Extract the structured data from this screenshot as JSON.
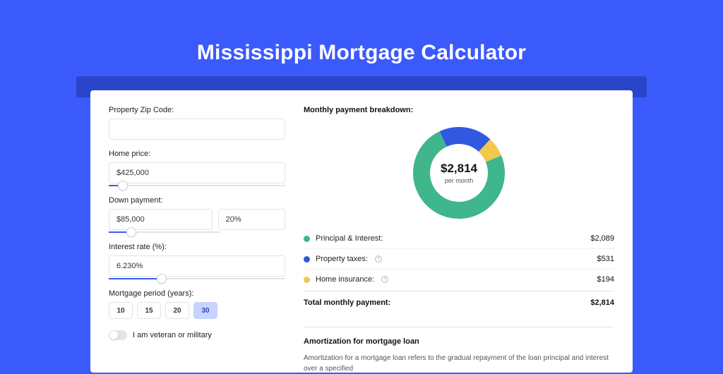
{
  "page": {
    "title": "Mississippi Mortgage Calculator",
    "background_color": "#3b5afc",
    "header_shade_color": "#2946c8",
    "card_background": "#ffffff"
  },
  "form": {
    "zip_label": "Property Zip Code:",
    "zip_value": "",
    "home_price_label": "Home price:",
    "home_price_value": "$425,000",
    "home_price_slider_pct": 8,
    "down_payment_label": "Down payment:",
    "down_payment_value": "$85,000",
    "down_payment_pct_value": "20%",
    "down_payment_slider_pct": 20,
    "interest_label": "Interest rate (%):",
    "interest_value": "6.230%",
    "interest_slider_pct": 30,
    "period_label": "Mortgage period (years):",
    "periods": [
      "10",
      "15",
      "20",
      "30"
    ],
    "period_selected": "30",
    "veteran_label": "I am veteran or military",
    "veteran_on": false
  },
  "breakdown": {
    "title": "Monthly payment breakdown:",
    "donut": {
      "amount": "$2,814",
      "sub": "per month",
      "slices": [
        {
          "label": "Principal & Interest",
          "value": 2089,
          "color": "#3fb68b",
          "pct": 74.24
        },
        {
          "label": "Property taxes",
          "value": 531,
          "color": "#3058e0",
          "pct": 18.87
        },
        {
          "label": "Home insurance",
          "value": 194,
          "color": "#f2c94c",
          "pct": 6.89
        }
      ],
      "thickness": 24,
      "radius": 65
    },
    "rows": [
      {
        "dot": "#3fb68b",
        "label": "Principal & Interest:",
        "info": false,
        "value": "$2,089"
      },
      {
        "dot": "#3058e0",
        "label": "Property taxes:",
        "info": true,
        "value": "$531"
      },
      {
        "dot": "#f2c94c",
        "label": "Home insurance:",
        "info": true,
        "value": "$194"
      }
    ],
    "total_label": "Total monthly payment:",
    "total_value": "$2,814"
  },
  "amortization": {
    "title": "Amortization for mortgage loan",
    "text": "Amortization for a mortgage loan refers to the gradual repayment of the loan principal and interest over a specified"
  }
}
